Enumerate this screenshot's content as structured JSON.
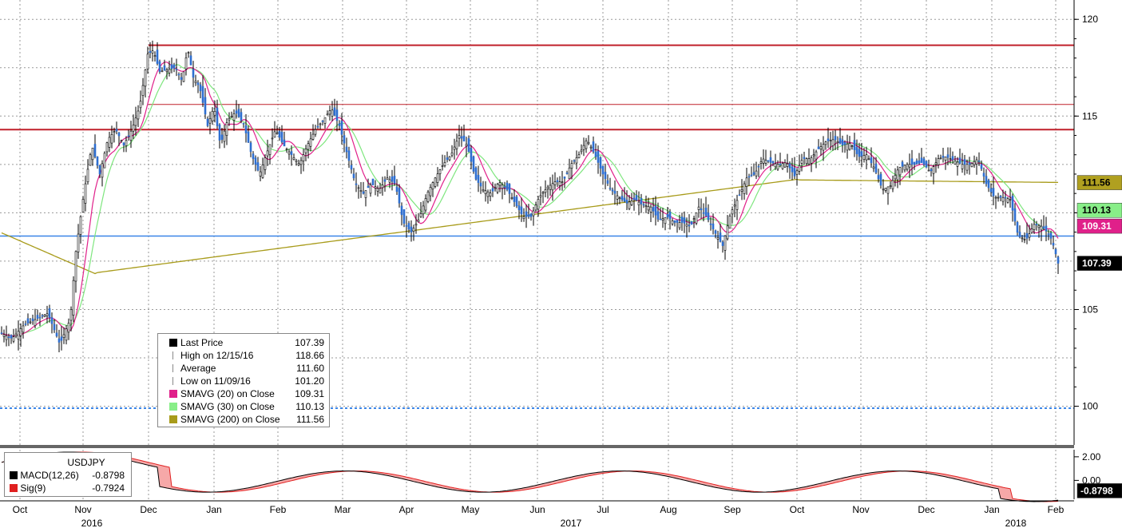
{
  "chart_data": {
    "type": "candlestick",
    "instrument": "USDJPY",
    "ylim": [
      98,
      121
    ],
    "y_ticks": [
      100,
      105,
      110,
      115,
      120
    ],
    "x_month_labels": [
      "Oct",
      "Nov",
      "Dec",
      "Jan",
      "Feb",
      "Mar",
      "Apr",
      "May",
      "Jun",
      "Jul",
      "Aug",
      "Sep",
      "Oct",
      "Nov",
      "Dec",
      "Jan",
      "Feb"
    ],
    "x_year_labels": [
      "2016",
      "2017",
      "2018"
    ],
    "price_path": [
      [
        0,
        103.8
      ],
      [
        15,
        103.5
      ],
      [
        30,
        104.2
      ],
      [
        45,
        104.5
      ],
      [
        60,
        104.8
      ],
      [
        75,
        103.2
      ],
      [
        88,
        104.5
      ],
      [
        95,
        108
      ],
      [
        105,
        111
      ],
      [
        115,
        113.5
      ],
      [
        125,
        112
      ],
      [
        135,
        113.8
      ],
      [
        145,
        114.3
      ],
      [
        155,
        113.5
      ],
      [
        165,
        114.3
      ],
      [
        175,
        115.5
      ],
      [
        185,
        118.2
      ],
      [
        192,
        118.4
      ],
      [
        200,
        117.3
      ],
      [
        210,
        117.4
      ],
      [
        220,
        117.5
      ],
      [
        228,
        116.8
      ],
      [
        235,
        118.5
      ],
      [
        242,
        117
      ],
      [
        250,
        116.5
      ],
      [
        260,
        114.5
      ],
      [
        268,
        115.5
      ],
      [
        276,
        113.5
      ],
      [
        285,
        114.8
      ],
      [
        295,
        115.2
      ],
      [
        305,
        114.6
      ],
      [
        315,
        113
      ],
      [
        325,
        112
      ],
      [
        335,
        113.2
      ],
      [
        345,
        114.3
      ],
      [
        355,
        113.5
      ],
      [
        365,
        113
      ],
      [
        375,
        112.5
      ],
      [
        385,
        113.5
      ],
      [
        395,
        114.3
      ],
      [
        405,
        114.8
      ],
      [
        415,
        115.4
      ],
      [
        425,
        114.5
      ],
      [
        435,
        113
      ],
      [
        445,
        111.5
      ],
      [
        455,
        111
      ],
      [
        465,
        111.5
      ],
      [
        475,
        111.2
      ],
      [
        485,
        111.8
      ],
      [
        495,
        111.5
      ],
      [
        505,
        109.5
      ],
      [
        515,
        109
      ],
      [
        525,
        109.7
      ],
      [
        535,
        111
      ],
      [
        545,
        111.8
      ],
      [
        555,
        112.5
      ],
      [
        565,
        113
      ],
      [
        575,
        114
      ],
      [
        585,
        113.5
      ],
      [
        595,
        111.8
      ],
      [
        605,
        111.2
      ],
      [
        615,
        111
      ],
      [
        625,
        111.6
      ],
      [
        635,
        111.2
      ],
      [
        645,
        110.5
      ],
      [
        655,
        109.8
      ],
      [
        665,
        109.8
      ],
      [
        675,
        110.8
      ],
      [
        685,
        111.3
      ],
      [
        695,
        111.6
      ],
      [
        705,
        111.6
      ],
      [
        715,
        112.5
      ],
      [
        725,
        113
      ],
      [
        735,
        113.8
      ],
      [
        745,
        113
      ],
      [
        755,
        112
      ],
      [
        765,
        111.2
      ],
      [
        775,
        110.8
      ],
      [
        785,
        110.5
      ],
      [
        795,
        110.7
      ],
      [
        805,
        110.4
      ],
      [
        815,
        110.3
      ],
      [
        825,
        109.6
      ],
      [
        835,
        109.8
      ],
      [
        845,
        109.5
      ],
      [
        855,
        109.5
      ],
      [
        865,
        109.3
      ],
      [
        875,
        110.3
      ],
      [
        885,
        109.8
      ],
      [
        895,
        109
      ],
      [
        905,
        108.3
      ],
      [
        915,
        110
      ],
      [
        925,
        110.8
      ],
      [
        935,
        111.8
      ],
      [
        945,
        112
      ],
      [
        955,
        112.8
      ],
      [
        965,
        112.6
      ],
      [
        975,
        112.5
      ],
      [
        985,
        112.6
      ],
      [
        995,
        111.9
      ],
      [
        1005,
        112.8
      ],
      [
        1015,
        112.8
      ],
      [
        1025,
        113.3
      ],
      [
        1035,
        113.7
      ],
      [
        1045,
        113.8
      ],
      [
        1055,
        113.5
      ],
      [
        1065,
        113.6
      ],
      [
        1075,
        112.9
      ],
      [
        1085,
        113
      ],
      [
        1095,
        112.3
      ],
      [
        1105,
        111.2
      ],
      [
        1115,
        111.4
      ],
      [
        1125,
        112.3
      ],
      [
        1135,
        112.5
      ],
      [
        1145,
        112.5
      ],
      [
        1155,
        112.6
      ],
      [
        1165,
        112.1
      ],
      [
        1175,
        112.8
      ],
      [
        1185,
        112.9
      ],
      [
        1195,
        112.7
      ],
      [
        1205,
        112.5
      ],
      [
        1215,
        112.5
      ],
      [
        1225,
        112.8
      ],
      [
        1235,
        111.5
      ],
      [
        1245,
        110.8
      ],
      [
        1255,
        110.8
      ],
      [
        1265,
        110.7
      ],
      [
        1275,
        108.8
      ],
      [
        1285,
        108.6
      ],
      [
        1295,
        109.4
      ],
      [
        1305,
        109.3
      ],
      [
        1315,
        108.8
      ],
      [
        1320,
        108.2
      ],
      [
        1325,
        107.39
      ]
    ],
    "horizontal_lines": [
      {
        "value": 118.66,
        "color": "#c0202a",
        "width": 2
      },
      {
        "value": 115.6,
        "color": "#c0202a",
        "width": 1
      },
      {
        "value": 114.3,
        "color": "#c0202a",
        "width": 2
      },
      {
        "value": 108.8,
        "color": "#3b86e8",
        "width": 1.5
      },
      {
        "value": 99.9,
        "color": "#3b86e8",
        "width": 2,
        "dash": "3,3"
      }
    ],
    "series": [
      {
        "name": "Last Price",
        "value": "107.39",
        "color": "#2f6fd0",
        "tag_bg": "#000000",
        "tag_fg": "#ffffff"
      },
      {
        "name": "SMAVG (20) on Close",
        "value": "109.31",
        "color": "#e0208a",
        "tag_bg": "#e0208a",
        "tag_fg": "#ffffff"
      },
      {
        "name": "SMAVG (30) on Close",
        "value": "110.13",
        "color": "#7ee67e",
        "tag_bg": "#88ee88",
        "tag_fg": "#000000"
      },
      {
        "name": "SMAVG (200) on Close",
        "value": "111.56",
        "color": "#a89b1a",
        "tag_bg": "#b0a020",
        "tag_fg": "#000000"
      }
    ],
    "legend": [
      {
        "label": "Last Price",
        "value": "107.39",
        "symbol": "box",
        "color": "#000000"
      },
      {
        "label": "High on 12/15/16",
        "value": "118.66",
        "symbol": "high",
        "color": "#888888"
      },
      {
        "label": "Average",
        "value": "111.60",
        "symbol": "avg",
        "color": "#888888"
      },
      {
        "label": "Low on 11/09/16",
        "value": "101.20",
        "symbol": "low",
        "color": "#888888"
      },
      {
        "label": "SMAVG (20) on Close",
        "value": "109.31",
        "symbol": "box",
        "color": "#e0208a"
      },
      {
        "label": "SMAVG (30) on Close",
        "value": "110.13",
        "symbol": "box",
        "color": "#88ee88"
      },
      {
        "label": "SMAVG (200) on Close",
        "value": "111.56",
        "symbol": "box",
        "color": "#a89b1a"
      }
    ],
    "macd": {
      "title": "USDJPY",
      "ylim": [
        -1.6,
        2.6
      ],
      "y_ticks": [
        "2.00",
        "0.00"
      ],
      "macd_label": "MACD(12,26)",
      "macd_value": "-0.8798",
      "sig_label": "Sig(9)",
      "sig_value": "-0.7924",
      "macd_tag": "-0.8798"
    }
  }
}
